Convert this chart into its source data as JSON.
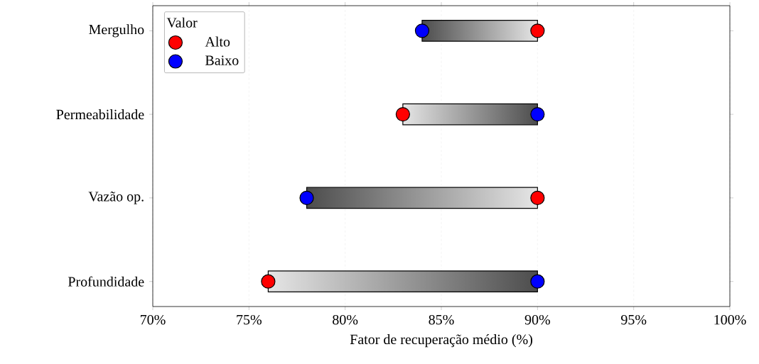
{
  "chart_data": {
    "type": "bar",
    "orientation": "horizontal",
    "xlabel": "Fator de recuperação médio (%)",
    "legend_title": "Valor",
    "categories": [
      "Mergulho",
      "Permeabilidade",
      "Vazão op.",
      "Profundidade"
    ],
    "series": [
      {
        "color": "#808080",
        "base": [
          84,
          83,
          78,
          76
        ],
        "values": [
          6,
          7,
          12,
          14
        ]
      },
      {
        "type": "scatter",
        "name": "Alto",
        "color": "#ff0000",
        "values": [
          90,
          83,
          90,
          76
        ]
      },
      {
        "type": "scatter",
        "name": "Baixo",
        "color": "#0000ff",
        "values": [
          84,
          90,
          78,
          90
        ]
      }
    ],
    "xlim": [
      70,
      100
    ],
    "xticks": [
      {
        "value": 70,
        "label": "70%"
      },
      {
        "value": 75,
        "label": "75%"
      },
      {
        "value": 80,
        "label": "80%"
      },
      {
        "value": 85,
        "label": "85%"
      },
      {
        "value": 90,
        "label": "90%"
      },
      {
        "value": 95,
        "label": "95%"
      },
      {
        "value": 100,
        "label": "100%"
      }
    ],
    "grid": "x",
    "legend": "top left",
    "marker": "circle"
  }
}
